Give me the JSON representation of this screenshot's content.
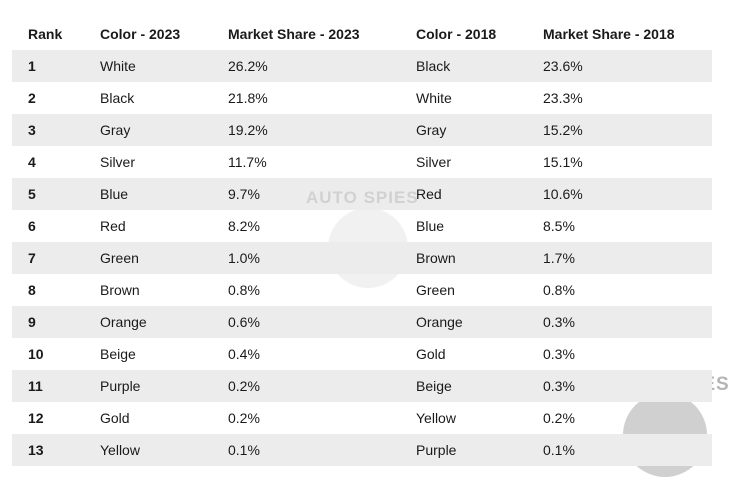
{
  "table": {
    "headers": [
      "Rank",
      "Color - 2023",
      "Market Share - 2023",
      "Color - 2018",
      "Market Share - 2018"
    ],
    "rows": [
      [
        "1",
        "White",
        "26.2%",
        "Black",
        "23.6%"
      ],
      [
        "2",
        "Black",
        "21.8%",
        "White",
        "23.3%"
      ],
      [
        "3",
        "Gray",
        "19.2%",
        "Gray",
        "15.2%"
      ],
      [
        "4",
        "Silver",
        "11.7%",
        "Silver",
        "15.1%"
      ],
      [
        "5",
        "Blue",
        "9.7%",
        "Red",
        "10.6%"
      ],
      [
        "6",
        "Red",
        "8.2%",
        "Blue",
        "8.5%"
      ],
      [
        "7",
        "Green",
        "1.0%",
        "Brown",
        "1.7%"
      ],
      [
        "8",
        "Brown",
        "0.8%",
        "Green",
        "0.8%"
      ],
      [
        "9",
        "Orange",
        "0.6%",
        "Orange",
        "0.3%"
      ],
      [
        "10",
        "Beige",
        "0.4%",
        "Gold",
        "0.3%"
      ],
      [
        "11",
        "Purple",
        "0.2%",
        "Beige",
        "0.3%"
      ],
      [
        "12",
        "Gold",
        "0.2%",
        "Yellow",
        "0.2%"
      ],
      [
        "13",
        "Yellow",
        "0.1%",
        "Purple",
        "0.1%"
      ]
    ]
  },
  "watermark": "AUTO SPIES"
}
